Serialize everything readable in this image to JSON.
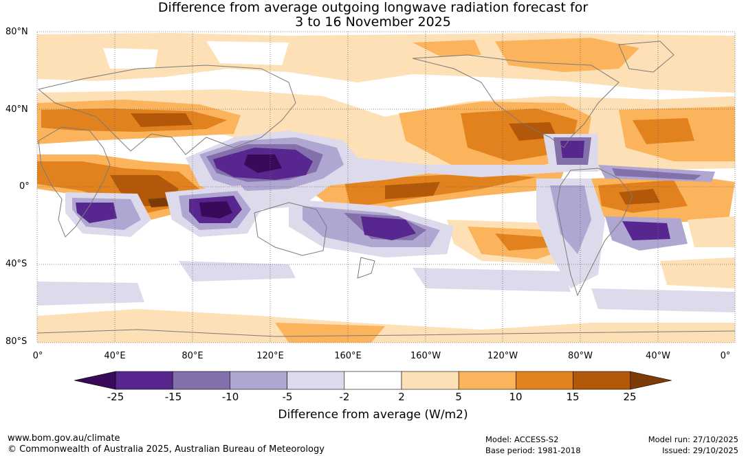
{
  "title": {
    "line1": "Difference from average outgoing longwave radiation forecast for",
    "line2": "3 to 16 November 2025"
  },
  "axes": {
    "lat_labels": [
      "80°N",
      "40°N",
      "0°",
      "40°S",
      "80°S"
    ],
    "lon_labels": [
      "0°",
      "40°E",
      "80°E",
      "120°E",
      "160°E",
      "160°W",
      "120°W",
      "80°W",
      "40°W",
      "0°"
    ]
  },
  "colorbar": {
    "title": "Difference from average (W/m2)",
    "boundaries": [
      "-25",
      "-15",
      "-10",
      "-5",
      "-2",
      "2",
      "5",
      "10",
      "15",
      "25"
    ],
    "colors": [
      "#3a0a5a",
      "#57268f",
      "#8470ab",
      "#b0a6d2",
      "#dcdaeb",
      "#ffffff",
      "#fde0b6",
      "#fbb45c",
      "#e2821e",
      "#b35708",
      "#7d3c07"
    ]
  },
  "footer": {
    "url": "www.bom.gov.au/climate",
    "copyright": "© Commonwealth of Australia 2025, Australian Bureau of Meteorology",
    "model": "Model: ACCESS-S2",
    "base_period": "Base period: 1981-2018",
    "model_run": "Model run: 27/10/2025",
    "issued": "Issued: 29/10/2025"
  },
  "map_style": {
    "ocean": "#ffffff",
    "coast": "#7a7a7a",
    "grid": "#666666"
  }
}
